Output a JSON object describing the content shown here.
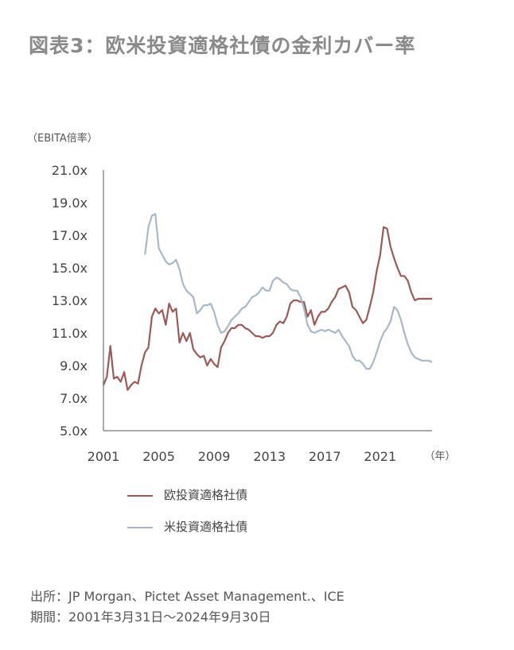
{
  "title": "図表3：欧米投資適格社債の金利カバー率",
  "source_line": "出所：JP Morgan、Pictet Asset Management.、ICE",
  "period_line": "期間：2001年3月31日～2024年9月30日",
  "chart_data": {
    "type": "line",
    "ylabel": "（EBITA倍率）",
    "xunit": "（年）",
    "ylim": [
      5,
      21
    ],
    "xlim": [
      2001.0,
      2024.75
    ],
    "y_ticks": [
      "5.0x",
      "7.0x",
      "9.0x",
      "11.0x",
      "13.0x",
      "15.0x",
      "17.0x",
      "19.0x",
      "21.0x"
    ],
    "y_tick_values": [
      5,
      7,
      9,
      11,
      13,
      15,
      17,
      19,
      21
    ],
    "x_ticks": [
      "2001",
      "2005",
      "2009",
      "2013",
      "2017",
      "2021"
    ],
    "x_tick_values": [
      2001,
      2005,
      2009,
      2013,
      2017,
      2021
    ],
    "grid": false,
    "legend": "bottom",
    "series": [
      {
        "name": "欧投資適格社債",
        "color": "#9b5a55",
        "x": [
          2001.0,
          2001.25,
          2001.5,
          2001.75,
          2002.0,
          2002.25,
          2002.5,
          2002.75,
          2003.0,
          2003.25,
          2003.5,
          2003.75,
          2004.0,
          2004.25,
          2004.5,
          2004.75,
          2005.0,
          2005.25,
          2005.5,
          2005.75,
          2006.0,
          2006.25,
          2006.5,
          2006.75,
          2007.0,
          2007.25,
          2007.5,
          2007.75,
          2008.0,
          2008.25,
          2008.5,
          2008.75,
          2009.0,
          2009.25,
          2009.5,
          2009.75,
          2010.0,
          2010.25,
          2010.5,
          2010.75,
          2011.0,
          2011.25,
          2011.5,
          2011.75,
          2012.0,
          2012.25,
          2012.5,
          2012.75,
          2013.0,
          2013.25,
          2013.5,
          2013.75,
          2014.0,
          2014.25,
          2014.5,
          2014.75,
          2015.0,
          2015.25,
          2015.5,
          2015.75,
          2016.0,
          2016.25,
          2016.5,
          2016.75,
          2017.0,
          2017.25,
          2017.5,
          2017.75,
          2018.0,
          2018.25,
          2018.5,
          2018.75,
          2019.0,
          2019.25,
          2019.5,
          2019.75,
          2020.0,
          2020.25,
          2020.5,
          2020.75,
          2021.0,
          2021.25,
          2021.5,
          2021.75,
          2022.0,
          2022.25,
          2022.5,
          2022.75,
          2023.0,
          2023.25,
          2023.5,
          2023.75,
          2024.0,
          2024.25,
          2024.5,
          2024.75
        ],
        "y": [
          7.8,
          8.3,
          10.2,
          8.2,
          8.3,
          8.0,
          8.6,
          7.5,
          7.8,
          8.0,
          7.9,
          9.0,
          9.8,
          10.1,
          12.0,
          12.5,
          12.2,
          12.4,
          11.5,
          12.8,
          12.3,
          12.5,
          10.4,
          11.0,
          10.5,
          11.0,
          10.0,
          9.7,
          9.5,
          9.6,
          9.0,
          9.4,
          9.1,
          8.9,
          10.1,
          10.5,
          11.0,
          11.3,
          11.3,
          11.5,
          11.5,
          11.3,
          11.2,
          11.0,
          10.8,
          10.8,
          10.7,
          10.8,
          10.8,
          11.0,
          11.5,
          11.7,
          11.6,
          12.0,
          12.8,
          13.0,
          13.0,
          12.9,
          12.9,
          12.0,
          12.4,
          11.5,
          12.0,
          12.3,
          12.3,
          12.5,
          12.9,
          13.2,
          13.7,
          13.8,
          13.9,
          13.5,
          12.6,
          12.4,
          12.0,
          11.6,
          11.8,
          12.6,
          13.5,
          14.8,
          15.8,
          17.5,
          17.4,
          16.3,
          15.6,
          15.0,
          14.5,
          14.5,
          14.2,
          13.5,
          13.0,
          13.1,
          13.1,
          13.1,
          13.1,
          13.1
        ]
      },
      {
        "name": "米投資適格社債",
        "color": "#a9b8c8",
        "x": [
          2004.0,
          2004.25,
          2004.5,
          2004.75,
          2005.0,
          2005.25,
          2005.5,
          2005.75,
          2006.0,
          2006.25,
          2006.5,
          2006.75,
          2007.0,
          2007.25,
          2007.5,
          2007.75,
          2008.0,
          2008.25,
          2008.5,
          2008.75,
          2009.0,
          2009.25,
          2009.5,
          2009.75,
          2010.0,
          2010.25,
          2010.5,
          2010.75,
          2011.0,
          2011.25,
          2011.5,
          2011.75,
          2012.0,
          2012.25,
          2012.5,
          2012.75,
          2013.0,
          2013.25,
          2013.5,
          2013.75,
          2014.0,
          2014.25,
          2014.5,
          2014.75,
          2015.0,
          2015.25,
          2015.5,
          2015.75,
          2016.0,
          2016.25,
          2016.5,
          2016.75,
          2017.0,
          2017.25,
          2017.5,
          2017.75,
          2018.0,
          2018.25,
          2018.5,
          2018.75,
          2019.0,
          2019.25,
          2019.5,
          2019.75,
          2020.0,
          2020.25,
          2020.5,
          2020.75,
          2021.0,
          2021.25,
          2021.5,
          2021.75,
          2022.0,
          2022.25,
          2022.5,
          2022.75,
          2023.0,
          2023.25,
          2023.5,
          2023.75,
          2024.0,
          2024.25,
          2024.5,
          2024.75
        ],
        "y": [
          15.8,
          17.5,
          18.2,
          18.3,
          16.2,
          15.8,
          15.4,
          15.2,
          15.3,
          15.5,
          14.9,
          14.0,
          13.6,
          13.4,
          13.2,
          12.2,
          12.4,
          12.7,
          12.7,
          12.8,
          12.3,
          11.5,
          11.0,
          11.1,
          11.4,
          11.8,
          12.0,
          12.2,
          12.5,
          12.6,
          12.9,
          13.2,
          13.3,
          13.5,
          13.8,
          13.6,
          13.6,
          14.2,
          14.4,
          14.3,
          14.1,
          14.0,
          13.7,
          13.6,
          13.6,
          13.2,
          12.5,
          11.5,
          11.1,
          11.0,
          11.1,
          11.2,
          11.1,
          11.2,
          11.1,
          11.0,
          11.2,
          10.8,
          10.5,
          10.2,
          9.6,
          9.3,
          9.3,
          9.1,
          8.8,
          8.8,
          9.2,
          9.8,
          10.5,
          11.0,
          11.3,
          11.7,
          12.6,
          12.4,
          11.8,
          11.0,
          10.3,
          9.8,
          9.5,
          9.4,
          9.3,
          9.3,
          9.3,
          9.2
        ]
      }
    ]
  }
}
